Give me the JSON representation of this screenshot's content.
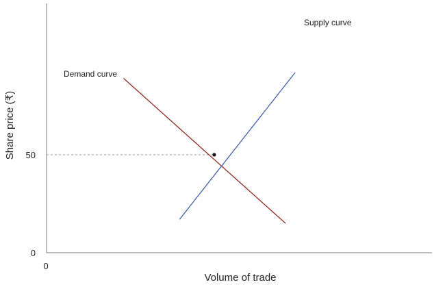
{
  "chart_data": {
    "type": "line",
    "title": "",
    "xlabel": "Volume of trade",
    "ylabel": "Share price (₹)",
    "xlim": [
      0,
      100
    ],
    "ylim": [
      0,
      100
    ],
    "grid": false,
    "x_tick_labels": [
      {
        "value": 0,
        "label": "0"
      }
    ],
    "y_tick_labels": [
      {
        "value": 0,
        "label": "0"
      },
      {
        "value": 50,
        "label": "50"
      }
    ],
    "series": [
      {
        "name": "Demand curve",
        "color": "#8b1a10",
        "points": [
          {
            "x": 20,
            "y": 89
          },
          {
            "x": 62,
            "y": 15
          }
        ]
      },
      {
        "name": "Supply curve",
        "color": "#3a55a8",
        "points": [
          {
            "x": 34.5,
            "y": 17
          },
          {
            "x": 64.5,
            "y": 92
          }
        ]
      }
    ],
    "equilibrium": {
      "x": 43.5,
      "y": 50,
      "color": "#111111"
    },
    "reference_line": {
      "y": 50,
      "style": "dashed"
    }
  }
}
